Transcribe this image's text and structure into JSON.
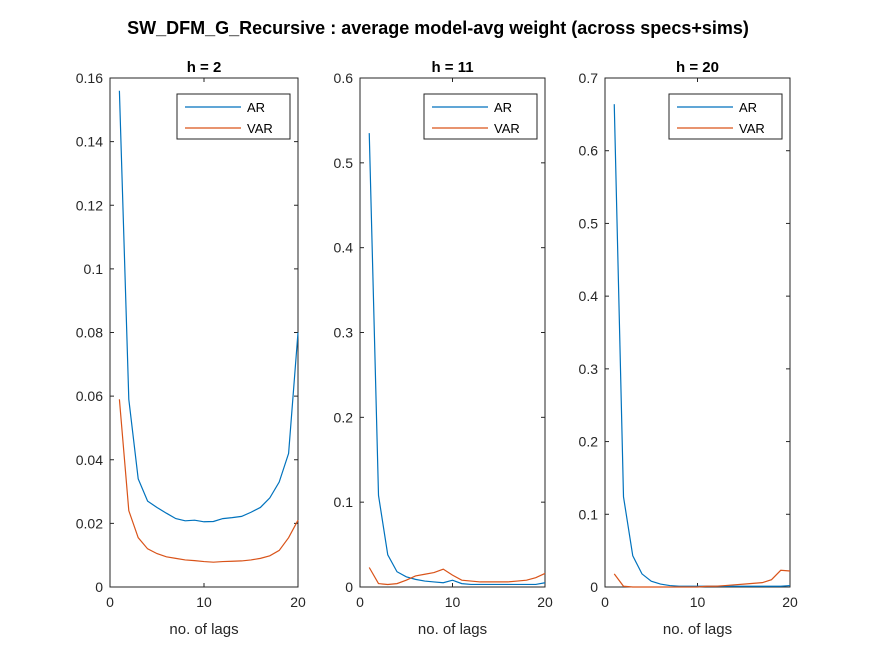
{
  "figure": {
    "title": "SW_DFM_G_Recursive : average model-avg weight (across specs+sims)"
  },
  "colors": {
    "AR": "#0072BD",
    "VAR": "#D95319"
  },
  "chart_data": [
    {
      "type": "line",
      "title": "h = 2",
      "xlabel": "no. of lags",
      "ylabel": "",
      "xlim": [
        0,
        20
      ],
      "ylim": [
        0,
        0.16
      ],
      "xticks": [
        0,
        10,
        20
      ],
      "yticks": [
        0,
        0.02,
        0.04,
        0.06,
        0.08,
        0.1,
        0.12,
        0.14,
        0.16
      ],
      "legend": "top-right",
      "x": [
        1,
        2,
        3,
        4,
        5,
        6,
        7,
        8,
        9,
        10,
        11,
        12,
        13,
        14,
        15,
        16,
        17,
        18,
        19,
        20
      ],
      "series": [
        {
          "name": "AR",
          "values": [
            0.156,
            0.059,
            0.034,
            0.027,
            0.025,
            0.0232,
            0.0215,
            0.0208,
            0.021,
            0.0205,
            0.0206,
            0.0215,
            0.0218,
            0.0222,
            0.0235,
            0.025,
            0.028,
            0.033,
            0.042,
            0.08
          ]
        },
        {
          "name": "VAR",
          "values": [
            0.059,
            0.024,
            0.0155,
            0.012,
            0.0105,
            0.0095,
            0.009,
            0.0085,
            0.0083,
            0.008,
            0.0078,
            0.008,
            0.0081,
            0.0082,
            0.0085,
            0.009,
            0.0098,
            0.0115,
            0.0155,
            0.021
          ]
        }
      ]
    },
    {
      "type": "line",
      "title": "h = 11",
      "xlabel": "no. of lags",
      "ylabel": "",
      "xlim": [
        0,
        20
      ],
      "ylim": [
        0,
        0.6
      ],
      "xticks": [
        0,
        10,
        20
      ],
      "yticks": [
        0,
        0.1,
        0.2,
        0.3,
        0.4,
        0.5,
        0.6
      ],
      "legend": "top-right",
      "x": [
        1,
        2,
        3,
        4,
        5,
        6,
        7,
        8,
        9,
        10,
        11,
        12,
        13,
        14,
        15,
        16,
        17,
        18,
        19,
        20
      ],
      "series": [
        {
          "name": "AR",
          "values": [
            0.535,
            0.108,
            0.038,
            0.018,
            0.012,
            0.009,
            0.007,
            0.006,
            0.005,
            0.008,
            0.004,
            0.003,
            0.003,
            0.003,
            0.003,
            0.003,
            0.003,
            0.003,
            0.003,
            0.005
          ]
        },
        {
          "name": "VAR",
          "values": [
            0.023,
            0.004,
            0.003,
            0.004,
            0.008,
            0.013,
            0.015,
            0.017,
            0.021,
            0.014,
            0.008,
            0.007,
            0.006,
            0.006,
            0.006,
            0.006,
            0.007,
            0.008,
            0.011,
            0.016
          ]
        }
      ]
    },
    {
      "type": "line",
      "title": "h = 20",
      "xlabel": "no. of lags",
      "ylabel": "",
      "xlim": [
        0,
        20
      ],
      "ylim": [
        0,
        0.7
      ],
      "xticks": [
        0,
        10,
        20
      ],
      "yticks": [
        0,
        0.1,
        0.2,
        0.3,
        0.4,
        0.5,
        0.6,
        0.7
      ],
      "legend": "top-right",
      "x": [
        1,
        2,
        3,
        4,
        5,
        6,
        7,
        8,
        9,
        10,
        11,
        12,
        13,
        14,
        15,
        16,
        17,
        18,
        19,
        20
      ],
      "series": [
        {
          "name": "AR",
          "values": [
            0.664,
            0.124,
            0.043,
            0.018,
            0.008,
            0.004,
            0.002,
            0.001,
            0.001,
            0.001,
            0.001,
            0.001,
            0.001,
            0.001,
            0.001,
            0.001,
            0.001,
            0.001,
            0.001,
            0.002
          ]
        },
        {
          "name": "VAR",
          "values": [
            0.018,
            0.001,
            0.0,
            0.0,
            0.0,
            0.0,
            0.0,
            0.0,
            0.0,
            0.0,
            0.001,
            0.001,
            0.002,
            0.003,
            0.004,
            0.005,
            0.006,
            0.01,
            0.023,
            0.022
          ]
        }
      ]
    }
  ]
}
